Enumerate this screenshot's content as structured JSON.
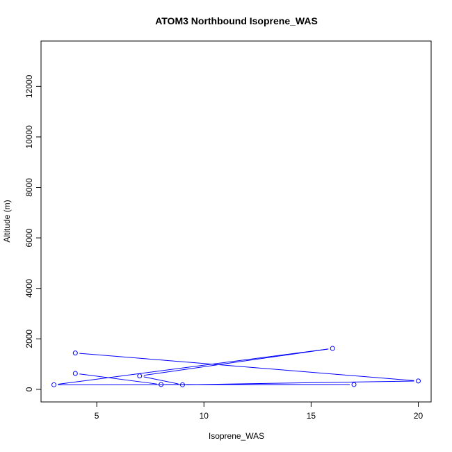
{
  "chart_data": {
    "type": "line",
    "title": "ATOM3 Northbound Isoprene_WAS",
    "xlabel": "Isoprene_WAS",
    "ylabel": "Altitude (m)",
    "xlim": [
      2.4,
      20.6
    ],
    "ylim": [
      -500,
      13800
    ],
    "x_ticks": [
      5,
      10,
      15,
      20
    ],
    "y_ticks": [
      0,
      2000,
      4000,
      6000,
      8000,
      10000,
      12000
    ],
    "grid": false,
    "legend": "none",
    "series": [
      {
        "color": "#0000ff",
        "marker": "open-circle",
        "points": [
          {
            "x": 4,
            "y": 630
          },
          {
            "x": 8,
            "y": 190
          },
          {
            "x": 17,
            "y": 190
          },
          {
            "x": 3,
            "y": 180
          },
          {
            "x": 16,
            "y": 1620
          },
          {
            "x": 7,
            "y": 530
          },
          {
            "x": 9,
            "y": 180
          },
          {
            "x": 20,
            "y": 330
          },
          {
            "x": 4,
            "y": 1440
          }
        ]
      }
    ]
  }
}
